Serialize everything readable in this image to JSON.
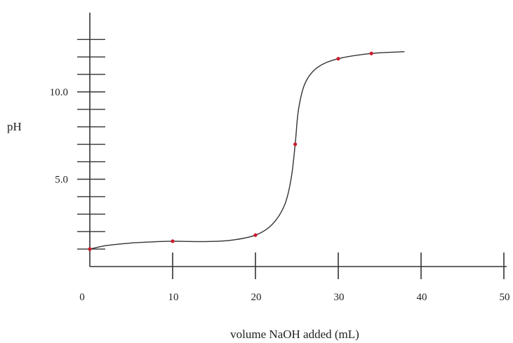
{
  "chart_data": {
    "type": "line",
    "title": "",
    "xlabel": "volume NaOH added (mL)",
    "ylabel": "pH",
    "xlim": [
      0,
      50
    ],
    "ylim": [
      0,
      13.5
    ],
    "x_ticks": [
      0,
      10,
      20,
      30,
      40,
      50
    ],
    "x_tick_labels": [
      "0",
      "10",
      "20",
      "30",
      "40",
      "50"
    ],
    "y_ticks_labeled": [
      5.0,
      10.0
    ],
    "y_tick_labels": [
      "5.0",
      "10.0"
    ],
    "y_minor_tick_step": 1,
    "grid": false,
    "series": [
      {
        "curve": [
          [
            0,
            1.0
          ],
          [
            2,
            1.2
          ],
          [
            5,
            1.35
          ],
          [
            8,
            1.42
          ],
          [
            10,
            1.45
          ],
          [
            14,
            1.43
          ],
          [
            17,
            1.5
          ],
          [
            20,
            1.8
          ],
          [
            22,
            2.4
          ],
          [
            23.5,
            3.5
          ],
          [
            24.3,
            5.0
          ],
          [
            24.8,
            7.0
          ],
          [
            25.2,
            9.0
          ],
          [
            26,
            10.5
          ],
          [
            27.5,
            11.4
          ],
          [
            30,
            11.9
          ],
          [
            34,
            12.2
          ],
          [
            38,
            12.3
          ]
        ],
        "points": [
          [
            0,
            1.0
          ],
          [
            10,
            1.45
          ],
          [
            20,
            1.8
          ],
          [
            24.8,
            7.0
          ],
          [
            30,
            11.9
          ],
          [
            34,
            12.2
          ]
        ],
        "line_color": "#333333",
        "point_color": "#cc1a2a"
      }
    ]
  }
}
